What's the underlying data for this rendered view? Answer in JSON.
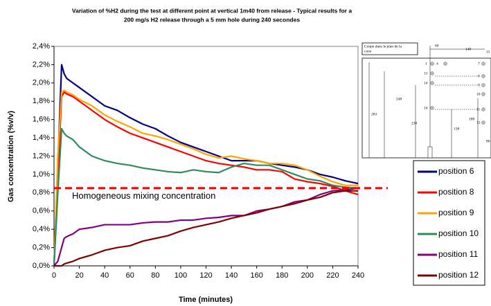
{
  "chart_data": {
    "type": "line",
    "title": [
      "Variation of %H2 during the test at different point at vertical 1m40 from release - Typical results for a",
      "200 mg/s H2 release through a 5 mm hole during 240 secondes"
    ],
    "x_label": "Time (minutes)",
    "y_label": "Gas concentration (%v/v)",
    "x": [
      0,
      3,
      6,
      8,
      10,
      15,
      20,
      30,
      40,
      50,
      60,
      70,
      80,
      90,
      100,
      110,
      120,
      130,
      140,
      150,
      160,
      170,
      180,
      190,
      200,
      210,
      220,
      230,
      240
    ],
    "series": [
      {
        "name": "position 6",
        "color": "#000080",
        "values": [
          0,
          1.1,
          2.2,
          2.1,
          2.05,
          2.0,
          1.95,
          1.85,
          1.75,
          1.7,
          1.62,
          1.55,
          1.5,
          1.42,
          1.35,
          1.3,
          1.25,
          1.2,
          1.15,
          1.15,
          1.15,
          1.12,
          1.1,
          1.08,
          1.05,
          1.0,
          0.97,
          0.93,
          0.9
        ]
      },
      {
        "name": "position 8",
        "color": "#ff0000",
        "values": [
          0,
          1.0,
          1.85,
          1.9,
          1.88,
          1.85,
          1.8,
          1.7,
          1.6,
          1.52,
          1.45,
          1.4,
          1.35,
          1.3,
          1.25,
          1.2,
          1.15,
          1.12,
          1.1,
          1.08,
          1.05,
          1.05,
          1.03,
          0.95,
          0.92,
          0.9,
          0.87,
          0.82,
          0.78
        ]
      },
      {
        "name": "position 9",
        "color": "#ffa500",
        "values": [
          0,
          1.2,
          1.9,
          1.92,
          1.9,
          1.87,
          1.82,
          1.75,
          1.65,
          1.58,
          1.52,
          1.45,
          1.42,
          1.38,
          1.33,
          1.28,
          1.22,
          1.18,
          1.2,
          1.17,
          1.15,
          1.12,
          1.12,
          1.1,
          1.05,
          0.98,
          0.92,
          0.88,
          0.88
        ]
      },
      {
        "name": "position 10",
        "color": "#2e8b57",
        "values": [
          0,
          0.8,
          1.5,
          1.45,
          1.42,
          1.38,
          1.3,
          1.2,
          1.15,
          1.12,
          1.1,
          1.07,
          1.05,
          1.03,
          1.02,
          1.05,
          1.03,
          1.02,
          1.08,
          1.12,
          1.1,
          1.1,
          1.05,
          1.0,
          0.95,
          0.93,
          0.88,
          0.86,
          0.85
        ]
      },
      {
        "name": "position 11",
        "color": "#800080",
        "values": [
          0,
          0.05,
          0.2,
          0.3,
          0.32,
          0.35,
          0.4,
          0.42,
          0.45,
          0.45,
          0.45,
          0.47,
          0.48,
          0.48,
          0.5,
          0.5,
          0.52,
          0.53,
          0.55,
          0.55,
          0.6,
          0.62,
          0.65,
          0.7,
          0.72,
          0.78,
          0.82,
          0.83,
          0.85
        ]
      },
      {
        "name": "position 12",
        "color": "#800000",
        "values": [
          0,
          0,
          0,
          0.02,
          0.03,
          0.05,
          0.08,
          0.12,
          0.17,
          0.2,
          0.22,
          0.27,
          0.3,
          0.33,
          0.38,
          0.42,
          0.45,
          0.48,
          0.52,
          0.55,
          0.58,
          0.62,
          0.65,
          0.68,
          0.72,
          0.75,
          0.8,
          0.82,
          0.82
        ]
      }
    ],
    "reference_line": {
      "value": 0.85,
      "label": "Homogeneous mixing concentration",
      "color": "#ff0000"
    },
    "xlim": [
      0,
      240
    ],
    "xticks": [
      0,
      20,
      40,
      60,
      80,
      100,
      120,
      140,
      160,
      180,
      200,
      220,
      240
    ],
    "ylim": [
      0,
      2.4
    ],
    "yticks": [
      {
        "value": 0,
        "label": "0,0%"
      },
      {
        "value": 0.2,
        "label": "0,2%"
      },
      {
        "value": 0.4,
        "label": "0,4%"
      },
      {
        "value": 0.6,
        "label": "0,6%"
      },
      {
        "value": 0.8,
        "label": "0,8%"
      },
      {
        "value": 1.0,
        "label": "1,0%"
      },
      {
        "value": 1.2,
        "label": "1,2%"
      },
      {
        "value": 1.4,
        "label": "1,4%"
      },
      {
        "value": 1.6,
        "label": "1,6%"
      },
      {
        "value": 1.8,
        "label": "1,8%"
      },
      {
        "value": 2.0,
        "label": "2,0%"
      },
      {
        "value": 2.2,
        "label": "2,2%"
      },
      {
        "value": 2.4,
        "label": "2,4%"
      }
    ],
    "grid": false,
    "legend": "right"
  },
  "inset": {
    "caption": [
      "Coupe dans le plan de la",
      "cuve"
    ],
    "labels": [
      "60",
      "140",
      "15",
      "1",
      "4",
      "7",
      "13",
      "8",
      "14",
      "9",
      "10",
      "14",
      "11",
      "12",
      "248",
      "283",
      "238",
      "138",
      "188",
      "80"
    ]
  }
}
